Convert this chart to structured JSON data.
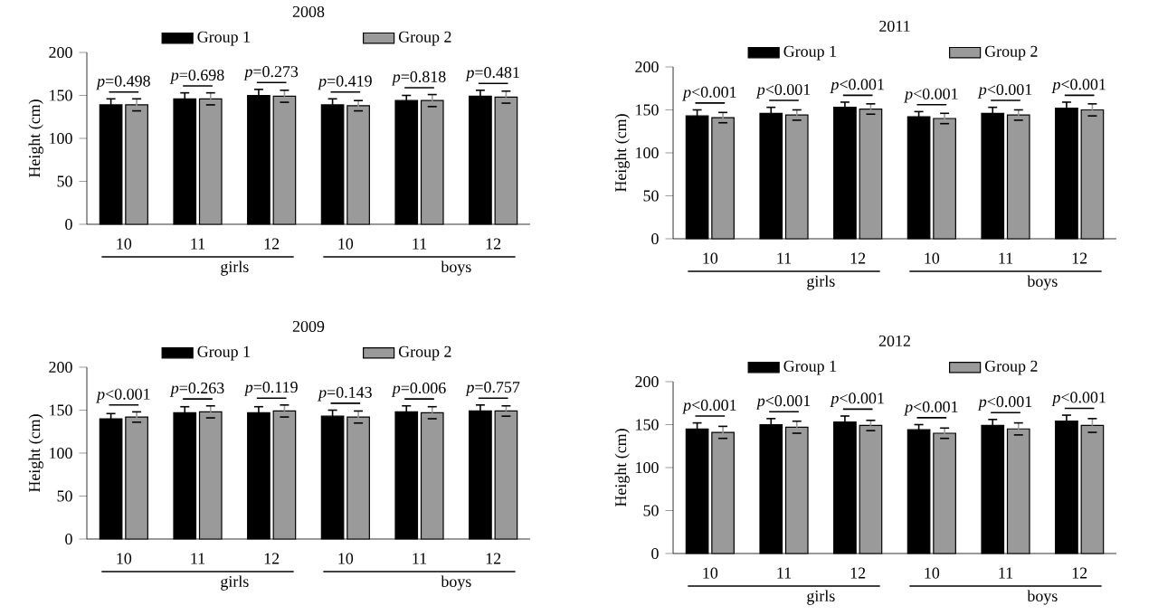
{
  "chart_data": [
    {
      "type": "bar",
      "title": "2008",
      "ylabel": "Height (cm)",
      "categories": [
        "10",
        "11",
        "12",
        "10",
        "11",
        "12"
      ],
      "series": [
        {
          "name": "Group 1",
          "color": "#000000",
          "values": [
            139,
            146,
            150,
            139,
            144,
            149
          ],
          "errors": [
            7,
            7,
            7,
            7,
            6,
            7
          ]
        },
        {
          "name": "Group 2",
          "color": "#9a9a9a",
          "values": [
            139,
            146,
            149,
            138,
            144,
            148
          ],
          "errors": [
            7,
            7,
            7,
            6,
            7,
            7
          ]
        }
      ],
      "ylim": [
        0,
        200
      ],
      "yticks": [
        0,
        50,
        100,
        150,
        200
      ],
      "legend": "top",
      "annotations": [
        "*p*=0.498",
        "*p*=0.698",
        "*p*=0.273",
        "*p*=0.419",
        "*p*=0.818",
        "*p*=0.481",
        "girls",
        "boys"
      ]
    },
    {
      "type": "bar",
      "title": "2011",
      "ylabel": "Height (cm)",
      "categories": [
        "10",
        "11",
        "12",
        "10",
        "11",
        "12"
      ],
      "series": [
        {
          "name": "Group 1",
          "color": "#000000",
          "values": [
            143,
            146,
            153,
            142,
            146,
            152
          ],
          "errors": [
            7,
            7,
            6,
            6,
            7,
            7
          ]
        },
        {
          "name": "Group 2",
          "color": "#9a9a9a",
          "values": [
            141,
            144,
            151,
            140,
            144,
            150
          ],
          "errors": [
            6,
            6,
            6,
            6,
            6,
            7
          ]
        }
      ],
      "ylim": [
        0,
        200
      ],
      "yticks": [
        0,
        50,
        100,
        150,
        200
      ],
      "legend": "top",
      "annotations": [
        "*p*<0.001",
        "*p*<0.001",
        "*p*<0.001",
        "*p*<0.001",
        "*p*<0.001",
        "*p*<0.001",
        "girls",
        "boys"
      ]
    },
    {
      "type": "bar",
      "title": "2009",
      "ylabel": "Height (cm)",
      "categories": [
        "10",
        "11",
        "12",
        "10",
        "11",
        "12"
      ],
      "series": [
        {
          "name": "Group 1",
          "color": "#000000",
          "values": [
            140,
            147,
            147,
            143,
            148,
            149
          ],
          "errors": [
            6,
            7,
            7,
            7,
            7,
            7
          ]
        },
        {
          "name": "Group 2",
          "color": "#9a9a9a",
          "values": [
            142,
            148,
            149,
            142,
            147,
            149
          ],
          "errors": [
            6,
            7,
            7,
            7,
            7,
            6
          ]
        }
      ],
      "ylim": [
        0,
        200
      ],
      "yticks": [
        0,
        50,
        100,
        150,
        200
      ],
      "legend": "top",
      "annotations": [
        "*p*<0.001",
        "*p*=0.263",
        "*p*=0.119",
        "*p*=0.143",
        "*p*=0.006",
        "*p*=0.757",
        "girls",
        "boys"
      ]
    },
    {
      "type": "bar",
      "title": "2012",
      "ylabel": "Height (cm)",
      "categories": [
        "10",
        "11",
        "12",
        "10",
        "11",
        "12"
      ],
      "series": [
        {
          "name": "Group 1",
          "color": "#000000",
          "values": [
            145,
            150,
            153,
            144,
            149,
            154
          ],
          "errors": [
            7,
            7,
            7,
            6,
            7,
            7
          ]
        },
        {
          "name": "Group 2",
          "color": "#9a9a9a",
          "values": [
            141,
            147,
            149,
            140,
            145,
            149
          ],
          "errors": [
            7,
            7,
            6,
            6,
            7,
            8
          ]
        }
      ],
      "ylim": [
        0,
        200
      ],
      "yticks": [
        0,
        50,
        100,
        150,
        200
      ],
      "legend": "top",
      "annotations": [
        "*p*<0.001",
        "*p*<0.001",
        "*p*<0.001",
        "*p*<0.001",
        "*p*<0.001",
        "*p*<0.001",
        "girls",
        "boys"
      ]
    }
  ]
}
